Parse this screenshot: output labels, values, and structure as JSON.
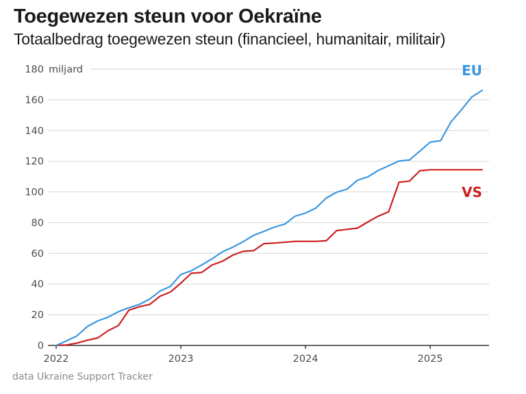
{
  "header": {
    "title": "Toegewezen steun voor Oekraïne",
    "subtitle": "Totaalbedrag toegewezen steun (financieel, humanitair, militair)"
  },
  "footer": {
    "source": "data Ukraine Support Tracker"
  },
  "chart_data": {
    "type": "line",
    "title": "Toegewezen steun voor Oekraïne",
    "subtitle": "Totaalbedrag toegewezen steun (financieel, humanitair, militair)",
    "xlabel": "",
    "ylabel": "miljard",
    "y_unit_label": "miljard",
    "ylim": [
      0,
      180
    ],
    "yticks": [
      0,
      20,
      40,
      60,
      80,
      100,
      120,
      140,
      160,
      180
    ],
    "ytick_labels": [
      "0",
      "20",
      "40",
      "60",
      "80",
      "100",
      "120",
      "140",
      "160",
      "180"
    ],
    "xlim": [
      "2022-01",
      "2025-06"
    ],
    "xticks": [
      "2022",
      "2023",
      "2024",
      "2025"
    ],
    "grid": true,
    "legend": "inline labels at right end of lines",
    "x": [
      "2022-01",
      "2022-02",
      "2022-03",
      "2022-04",
      "2022-05",
      "2022-06",
      "2022-07",
      "2022-08",
      "2022-09",
      "2022-10",
      "2022-11",
      "2022-12",
      "2023-01",
      "2023-02",
      "2023-03",
      "2023-04",
      "2023-05",
      "2023-06",
      "2023-07",
      "2023-08",
      "2023-09",
      "2023-10",
      "2023-11",
      "2023-12",
      "2024-01",
      "2024-02",
      "2024-03",
      "2024-04",
      "2024-05",
      "2024-06",
      "2024-07",
      "2024-08",
      "2024-09",
      "2024-10",
      "2024-11",
      "2024-12",
      "2025-01",
      "2025-02",
      "2025-03",
      "2025-04",
      "2025-05",
      "2025-06"
    ],
    "series": [
      {
        "name": "EU",
        "color": "#3a96e0",
        "values": [
          0,
          3,
          6.2,
          12.3,
          16,
          18.4,
          22,
          24.6,
          26.7,
          30.2,
          35.4,
          38.5,
          46.2,
          48.6,
          52.4,
          56.4,
          61,
          64,
          67.6,
          71.7,
          74.3,
          77.1,
          79,
          84.2,
          86.2,
          89.5,
          96,
          99.8,
          101.8,
          107.6,
          109.8,
          114,
          117,
          120.1,
          120.8,
          126.6,
          132.4,
          133.4,
          145.6,
          153.4,
          161.8,
          166.2
        ]
      },
      {
        "name": "VS",
        "color": "#cc1f1f",
        "values": [
          0,
          0.3,
          1.5,
          3.4,
          4.9,
          9.6,
          13,
          23,
          25.2,
          26.7,
          32.1,
          34.8,
          40.6,
          47,
          47.5,
          52.4,
          54.8,
          58.8,
          61.3,
          61.7,
          66.3,
          66.7,
          67.2,
          67.8,
          67.8,
          67.8,
          68.2,
          74.8,
          75.6,
          76.4,
          80.4,
          84.2,
          87,
          106.3,
          107,
          113.8,
          114.4,
          114.4,
          114.4,
          114.4,
          114.4,
          114.4
        ]
      }
    ]
  }
}
